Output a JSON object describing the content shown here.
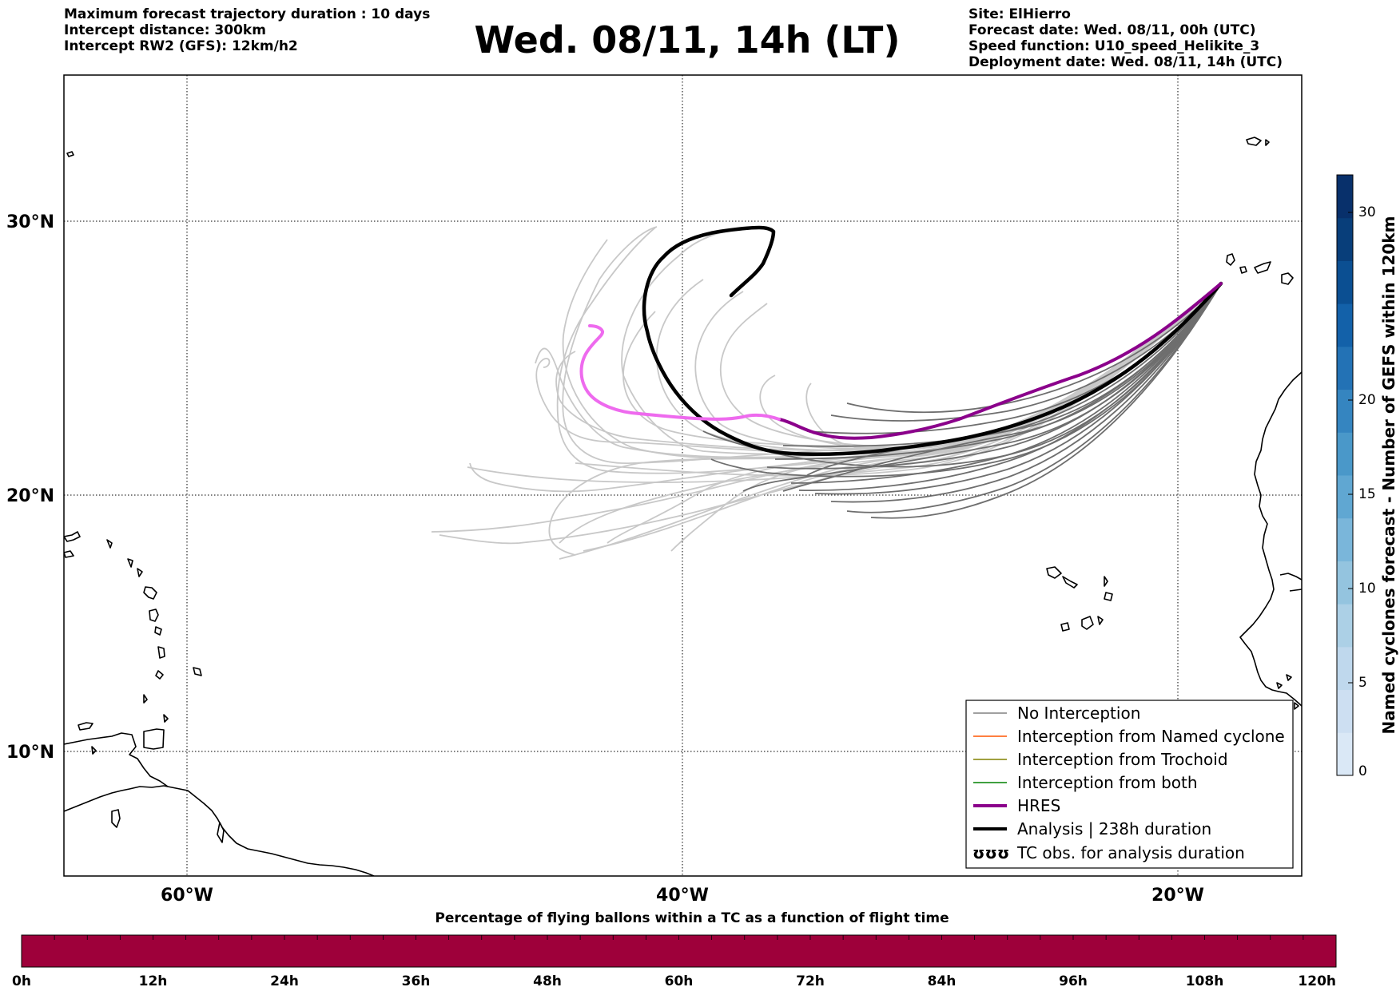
{
  "header": {
    "left": [
      "Maximum forecast trajectory duration : 10 days",
      "Intercept distance: 300km",
      "Intercept RW2 (GFS):  12km/h2"
    ],
    "title": "Wed. 08/11, 14h (LT)",
    "right": [
      "Site: ElHierro",
      "Forecast date: Wed. 08/11, 00h (UTC)",
      "Speed function: U10_speed_Helikite_3",
      "Deployment date: Wed. 08/11, 14h (UTC)"
    ]
  },
  "map": {
    "lat_labels": [
      "30°N",
      "20°N",
      "10°N"
    ],
    "lon_labels": [
      "60°W",
      "40°W",
      "20°W"
    ],
    "extent": {
      "lon_min": -65,
      "lon_max": -15,
      "lat_min": 5.4,
      "lat_max": 35.3
    },
    "gridlines": true
  },
  "legend": {
    "items": [
      {
        "label": "No Interception",
        "color": "#808080"
      },
      {
        "label": "Interception from Named cyclone",
        "color": "#ff5500"
      },
      {
        "label": "Interception from Trochoid",
        "color": "#808000"
      },
      {
        "label": "Interception from both",
        "color": "#008000"
      },
      {
        "label": "HRES",
        "color": "#8b008b"
      },
      {
        "label": "Analysis | 238h duration",
        "color": "#000000"
      },
      {
        "label": "TC obs. for analysis duration",
        "color": "#000000"
      }
    ],
    "tc_symbol": "ʊʊʊ"
  },
  "colorbar_right": {
    "title": "Named cyclones forecast - Number of GEFS within 120km",
    "ticks": [
      "0",
      "5",
      "10",
      "15",
      "20",
      "30"
    ],
    "colors": [
      "#dae8f6",
      "#cddff2",
      "#bfd8ed",
      "#acd0e6",
      "#94c4df",
      "#7ab6da",
      "#60a7d2",
      "#4a98c9",
      "#3585c0",
      "#2372b5",
      "#1361a9",
      "#0b4f92",
      "#083e7a",
      "#08306b"
    ]
  },
  "colorbar_bottom": {
    "title": "Percentage of flying ballons within a TC as a function of flight time",
    "ticks": [
      "0h",
      "12h",
      "24h",
      "36h",
      "48h",
      "60h",
      "72h",
      "84h",
      "96h",
      "108h",
      "120h"
    ],
    "color": "#9e003a"
  }
}
